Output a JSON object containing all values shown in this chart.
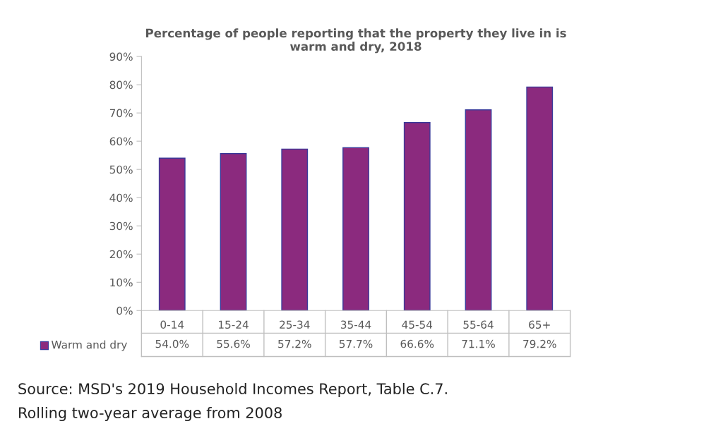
{
  "chart_data": {
    "type": "bar",
    "title": "Percentage of people reporting that the property they live in is\nwarm and dry, 2018",
    "categories": [
      "0-14",
      "15-24",
      "25-34",
      "35-44",
      "45-54",
      "55-64",
      "65+"
    ],
    "series": [
      {
        "name": "Warm and dry",
        "color": "#8b2a7e",
        "values": [
          54.0,
          55.6,
          57.2,
          57.7,
          66.6,
          71.1,
          79.2
        ]
      }
    ],
    "value_labels": [
      "54.0%",
      "55.6%",
      "57.2%",
      "57.7%",
      "66.6%",
      "71.1%",
      "79.2%"
    ],
    "ylim": [
      0,
      90
    ],
    "yticks": [
      {
        "value": 0,
        "label": "0%"
      },
      {
        "value": 10,
        "label": "10%"
      },
      {
        "value": 20,
        "label": "20%"
      },
      {
        "value": 30,
        "label": "30%"
      },
      {
        "value": 40,
        "label": "40%"
      },
      {
        "value": 50,
        "label": "50%"
      },
      {
        "value": 60,
        "label": "60%"
      },
      {
        "value": 70,
        "label": "70%"
      },
      {
        "value": 80,
        "label": "80%"
      },
      {
        "value": 90,
        "label": "90%"
      }
    ],
    "grid": false,
    "annotations": [
      "Source: MSD's 2019 Household Incomes Report, Table C.7.",
      "Rolling two-year average from 2008"
    ]
  }
}
